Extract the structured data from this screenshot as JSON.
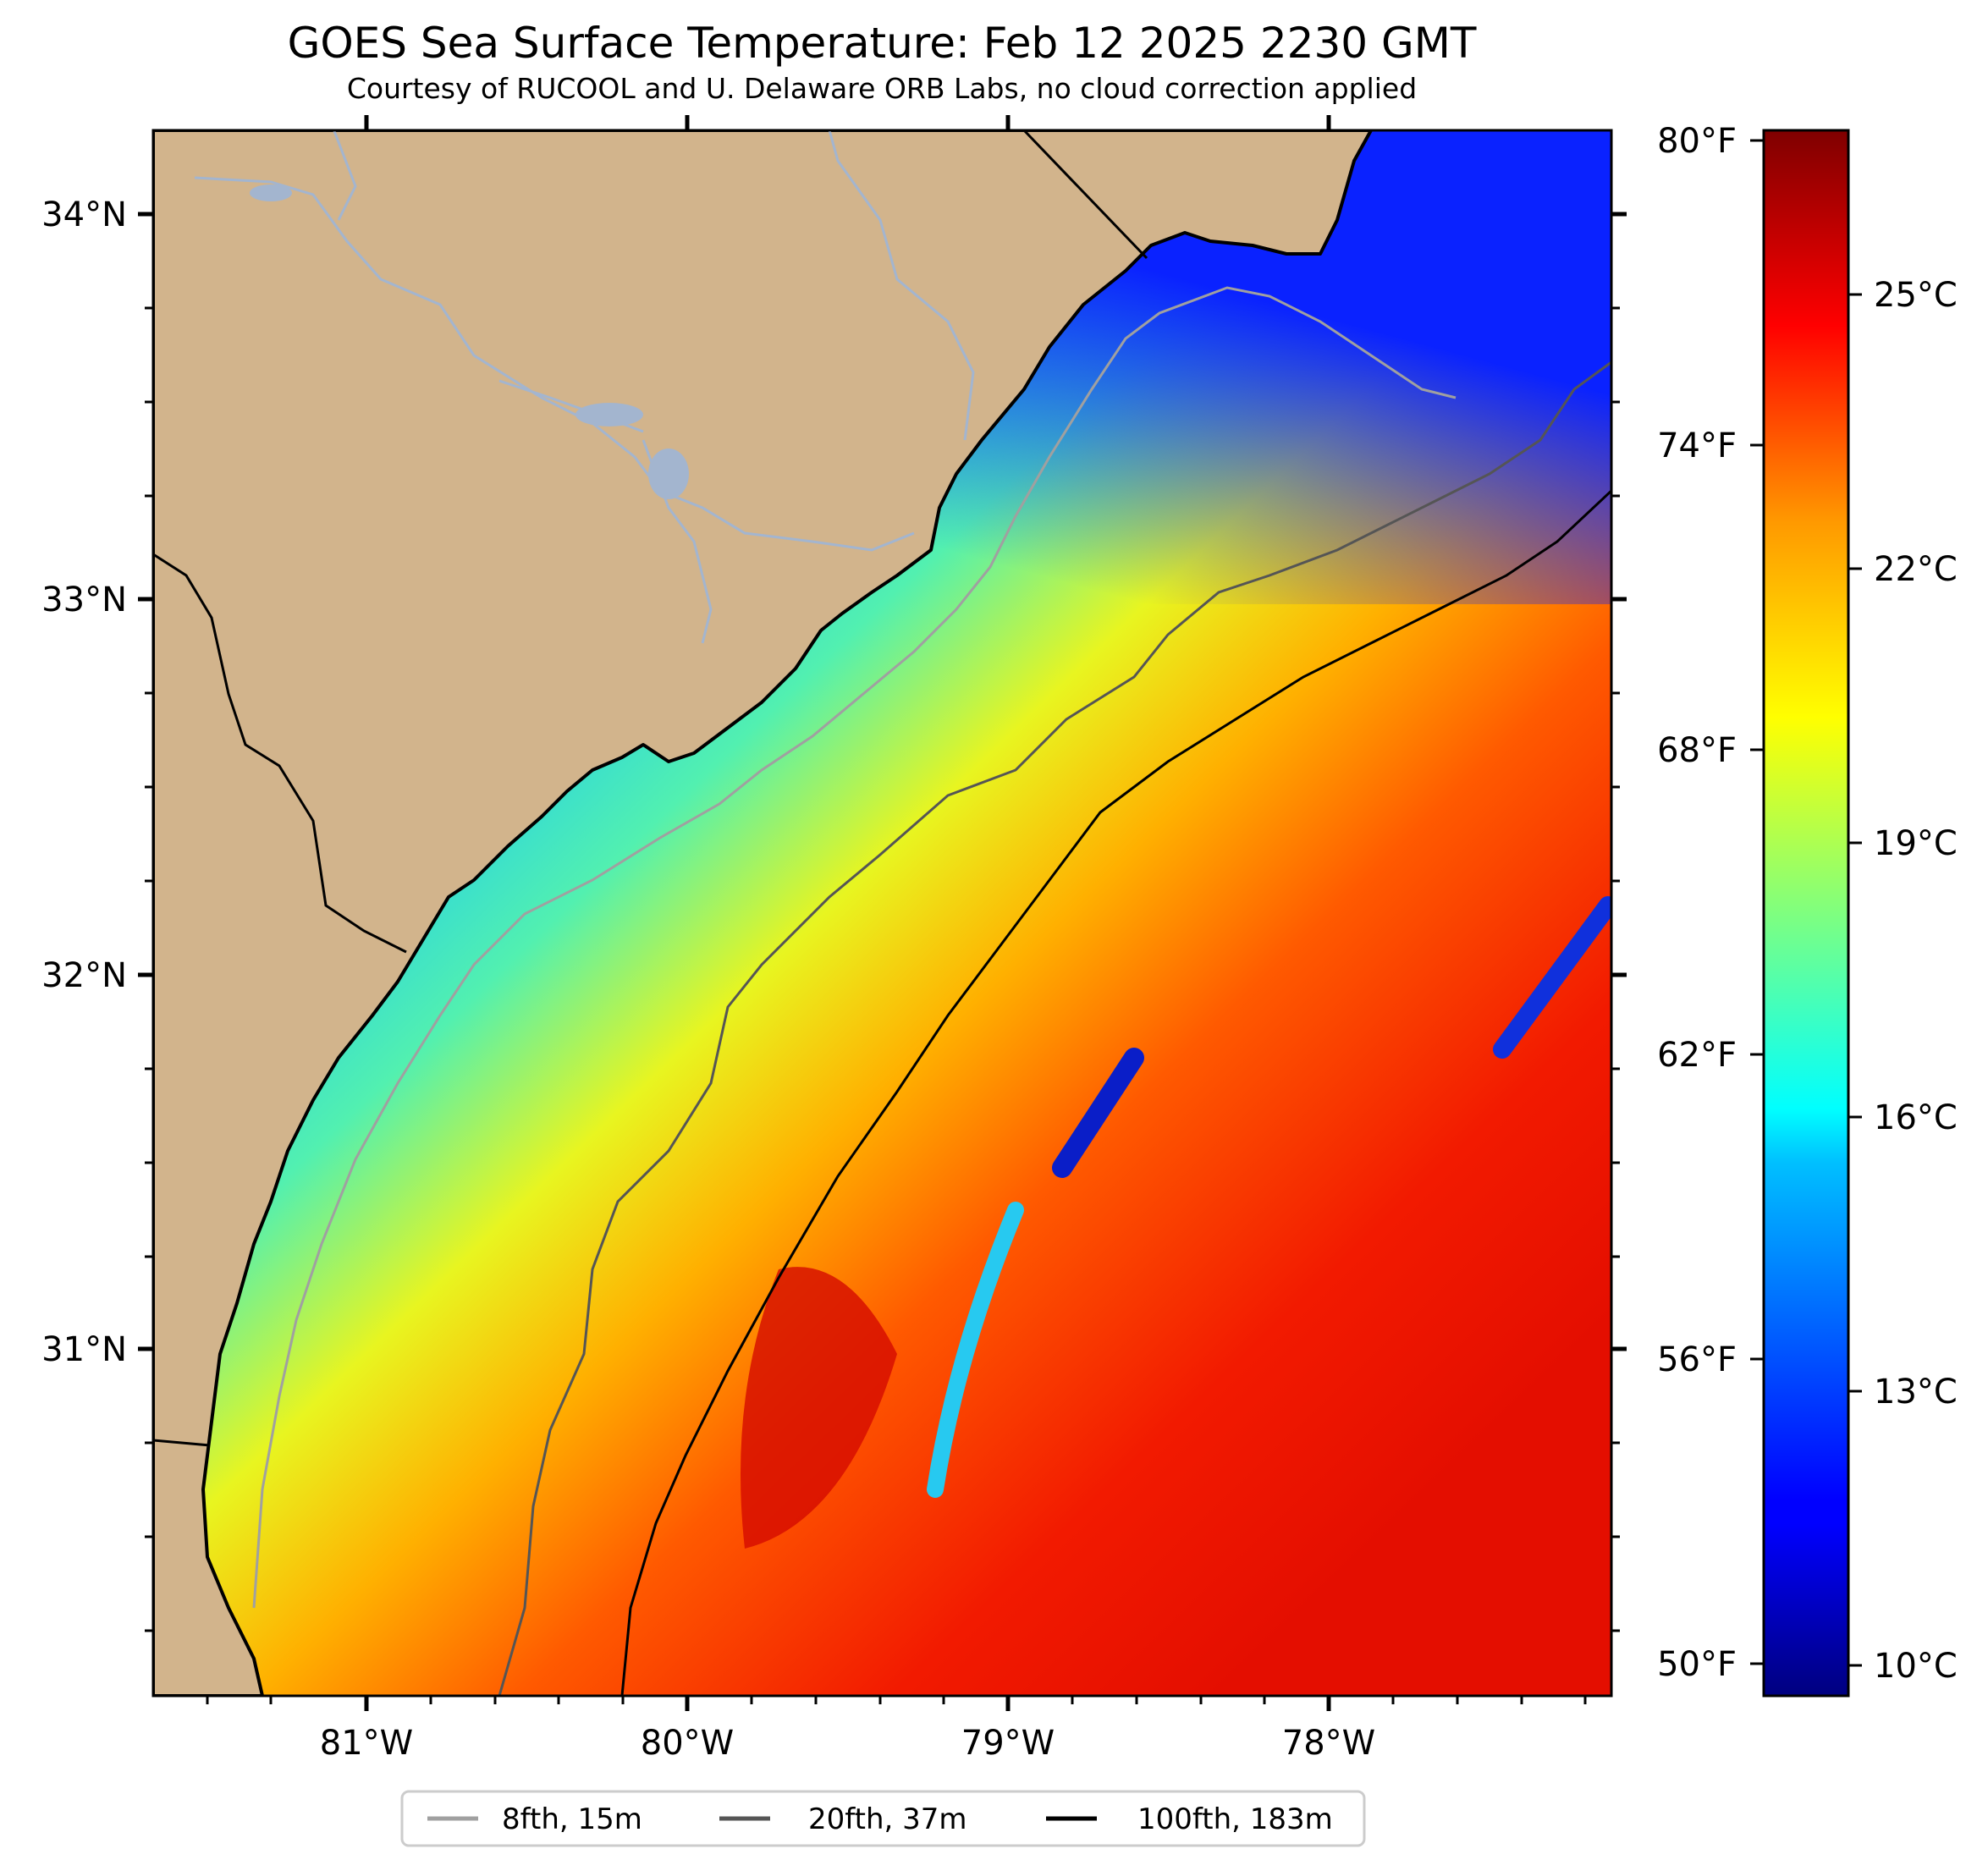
{
  "title": "GOES Sea Surface Temperature: Feb 12 2025 2230 GMT",
  "subtitle": "Courtesy of RUCOOL and U. Delaware ORB Labs, no cloud correction applied",
  "map": {
    "lat_labels": [
      "34°N",
      "33°N",
      "32°N",
      "31°N"
    ],
    "lon_labels": [
      "81°W",
      "80°W",
      "79°W",
      "78°W"
    ],
    "colors": {
      "land": "#d2b48c",
      "river": "#a3b5cf",
      "coast": "#000000"
    }
  },
  "colorbar": {
    "fahrenheit_labels": [
      "80°F",
      "74°F",
      "68°F",
      "62°F",
      "56°F",
      "50°F"
    ],
    "celsius_labels": [
      "25°C",
      "22°C",
      "19°C",
      "16°C",
      "13°C",
      "10°C"
    ],
    "colormap": "jet"
  },
  "legend": {
    "items": [
      {
        "label": "8fth, 15m",
        "color": "#a0a0a0"
      },
      {
        "label": "20fth, 37m",
        "color": "#555555"
      },
      {
        "label": "100fth, 183m",
        "color": "#000000"
      }
    ]
  }
}
